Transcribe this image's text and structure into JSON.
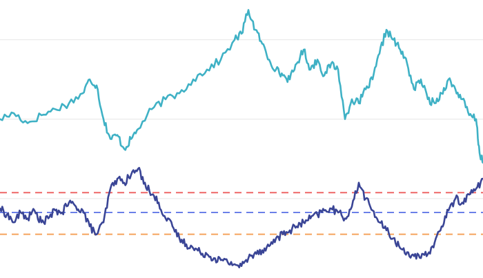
{
  "chart_data": {
    "type": "line",
    "title": "",
    "xlabel": "",
    "ylabel": "",
    "x_range": [
      0,
      140
    ],
    "ylim": [
      70,
      210
    ],
    "grid": true,
    "gridlines_y": [
      110,
      150,
      190
    ],
    "legend": "none",
    "series": [
      {
        "color": "#3fb1c5",
        "x": [
          0,
          4,
          8,
          12,
          16,
          20,
          24,
          26,
          28,
          30,
          32,
          34,
          36,
          38,
          40,
          44,
          48,
          52,
          56,
          60,
          64,
          68,
          70,
          72,
          74,
          76,
          78,
          80,
          82,
          84,
          86,
          88,
          90,
          92,
          94,
          96,
          98,
          100,
          102,
          104,
          106,
          108,
          110,
          112,
          114,
          116,
          118,
          120,
          122,
          124,
          126,
          128,
          130,
          132,
          134,
          136,
          138,
          139,
          140
        ],
        "values": [
          150,
          153,
          148,
          152,
          155,
          158,
          163,
          170,
          167,
          150,
          140,
          142,
          135,
          140,
          145,
          155,
          160,
          163,
          170,
          175,
          180,
          190,
          193,
          205,
          195,
          188,
          180,
          175,
          172,
          170,
          178,
          185,
          175,
          180,
          172,
          178,
          175,
          150,
          160,
          158,
          165,
          170,
          183,
          195,
          190,
          185,
          178,
          165,
          170,
          160,
          158,
          163,
          170,
          165,
          160,
          152,
          150,
          133,
          128
        ]
      },
      {
        "color": "#3a4596",
        "x": [
          0,
          2,
          4,
          6,
          8,
          10,
          12,
          14,
          16,
          18,
          20,
          22,
          24,
          26,
          28,
          30,
          32,
          34,
          36,
          38,
          40,
          42,
          44,
          46,
          48,
          50,
          52,
          54,
          56,
          58,
          60,
          62,
          64,
          66,
          68,
          70,
          72,
          74,
          76,
          78,
          80,
          82,
          84,
          86,
          88,
          90,
          92,
          94,
          96,
          98,
          100,
          102,
          104,
          106,
          108,
          110,
          112,
          114,
          116,
          118,
          120,
          122,
          124,
          126,
          128,
          130,
          132,
          134,
          136,
          138,
          140
        ],
        "values": [
          105,
          102,
          98,
          103,
          100,
          104,
          98,
          100,
          104,
          103,
          108,
          106,
          104,
          96,
          92,
          98,
          115,
          120,
          118,
          122,
          125,
          118,
          112,
          108,
          100,
          96,
          90,
          87,
          85,
          83,
          82,
          80,
          79,
          78,
          77,
          76,
          80,
          83,
          84,
          86,
          90,
          92,
          94,
          96,
          98,
          100,
          102,
          104,
          105,
          103,
          100,
          106,
          118,
          110,
          104,
          98,
          94,
          90,
          85,
          83,
          81,
          80,
          82,
          88,
          96,
          104,
          110,
          108,
          112,
          115,
          120
        ]
      }
    ],
    "reference_lines": [
      {
        "y": 113,
        "color": "#ee6666",
        "style": "dashed"
      },
      {
        "y": 103,
        "color": "#6b80e8",
        "style": "dashed"
      },
      {
        "y": 92,
        "color": "#f5a35c",
        "style": "dashed"
      }
    ]
  }
}
